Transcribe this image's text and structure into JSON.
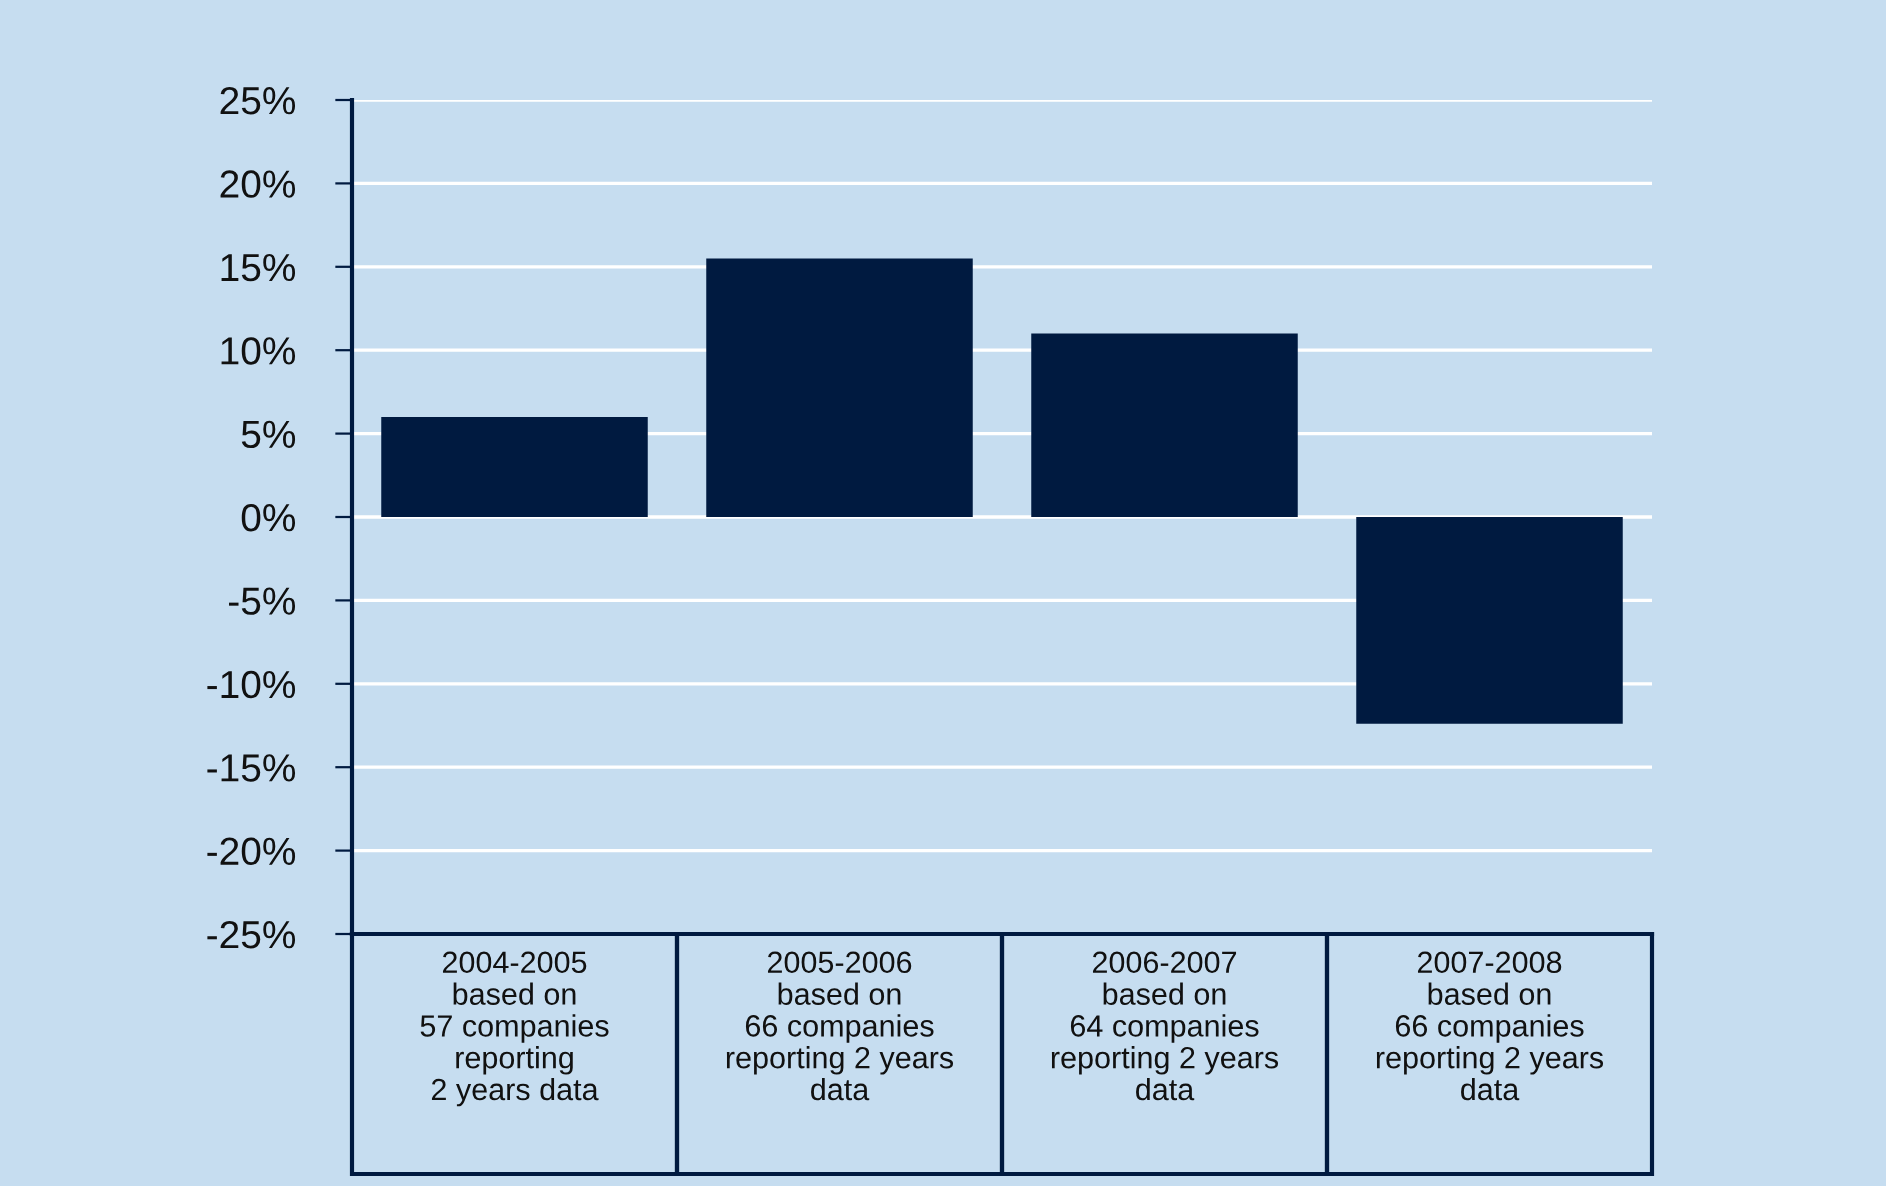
{
  "chart_data": {
    "type": "bar",
    "categories": [
      "2004-2005\nbased on\n57 companies\nreporting\n2 years data",
      "2005-2006\nbased on\n66 companies\nreporting 2 years\ndata",
      "2006-2007\nbased on\n64 companies\nreporting 2 years\ndata",
      "2007-2008\nbased on\n66 companies\nreporting 2 years\ndata"
    ],
    "values": [
      6.0,
      15.5,
      11.0,
      -12.4
    ],
    "color": "#001a40",
    "ylim": [
      -25,
      25
    ],
    "yticks": [
      {
        "value": -25,
        "label": "-25%"
      },
      {
        "value": -20,
        "label": "-20%"
      },
      {
        "value": -15,
        "label": "-15%"
      },
      {
        "value": -10,
        "label": "-10%"
      },
      {
        "value": -5,
        "label": "-5%"
      },
      {
        "value": 0,
        "label": "0%"
      },
      {
        "value": 5,
        "label": "5%"
      },
      {
        "value": 10,
        "label": "10%"
      },
      {
        "value": 15,
        "label": "15%"
      },
      {
        "value": 20,
        "label": "20%"
      },
      {
        "value": 25,
        "label": "25%"
      }
    ],
    "grid": "y",
    "legend": false
  }
}
